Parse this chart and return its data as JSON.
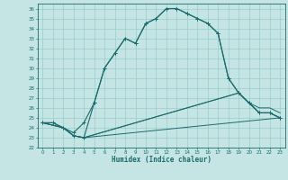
{
  "xlabel": "Humidex (Indice chaleur)",
  "xlim": [
    -0.5,
    23.5
  ],
  "ylim": [
    22,
    36.5
  ],
  "xticks": [
    0,
    1,
    2,
    3,
    4,
    5,
    6,
    7,
    8,
    9,
    10,
    11,
    12,
    13,
    14,
    15,
    16,
    17,
    18,
    19,
    20,
    21,
    22,
    23
  ],
  "yticks": [
    22,
    23,
    24,
    25,
    26,
    27,
    28,
    29,
    30,
    31,
    32,
    33,
    34,
    35,
    36
  ],
  "bg_color": "#c5e5e5",
  "line_color": "#1a6b6b",
  "grid_color": "#99cccc",
  "line1_x": [
    0,
    1,
    2,
    3,
    4,
    5,
    6,
    7,
    8,
    9,
    10,
    11,
    12,
    13,
    14,
    15,
    16,
    17,
    18,
    19,
    20,
    21,
    22,
    23
  ],
  "line1_y": [
    24.5,
    24.5,
    24.0,
    23.5,
    24.5,
    26.5,
    30.0,
    31.5,
    33.0,
    32.5,
    34.5,
    35.0,
    36.0,
    36.0,
    35.5,
    35.0,
    34.5,
    33.5,
    29.0,
    27.5,
    26.5,
    25.5,
    25.5,
    25.0
  ],
  "line2_x": [
    0,
    1,
    2,
    3,
    4,
    5,
    6,
    7,
    8,
    9,
    10,
    11,
    12,
    13,
    14,
    15,
    16,
    17,
    18,
    19,
    20,
    21,
    22,
    23
  ],
  "line2_y": [
    24.5,
    24.5,
    24.0,
    23.2,
    23.0,
    26.5,
    30.0,
    31.5,
    33.0,
    32.5,
    34.5,
    35.0,
    36.0,
    36.0,
    35.5,
    35.0,
    34.5,
    33.5,
    29.0,
    27.5,
    26.5,
    25.5,
    25.5,
    25.0
  ],
  "line3_x": [
    0,
    2,
    3,
    4,
    23
  ],
  "line3_y": [
    24.5,
    24.0,
    23.2,
    23.0,
    25.0
  ],
  "line4_x": [
    0,
    2,
    3,
    4,
    19,
    20,
    21,
    22,
    23
  ],
  "line4_y": [
    24.5,
    24.0,
    23.2,
    23.0,
    27.5,
    26.5,
    25.5,
    25.5,
    25.0
  ],
  "line5_x": [
    0,
    2,
    3,
    4,
    19,
    20,
    21,
    22,
    23
  ],
  "line5_y": [
    24.5,
    24.0,
    23.2,
    23.0,
    27.5,
    26.5,
    26.0,
    26.0,
    25.5
  ]
}
